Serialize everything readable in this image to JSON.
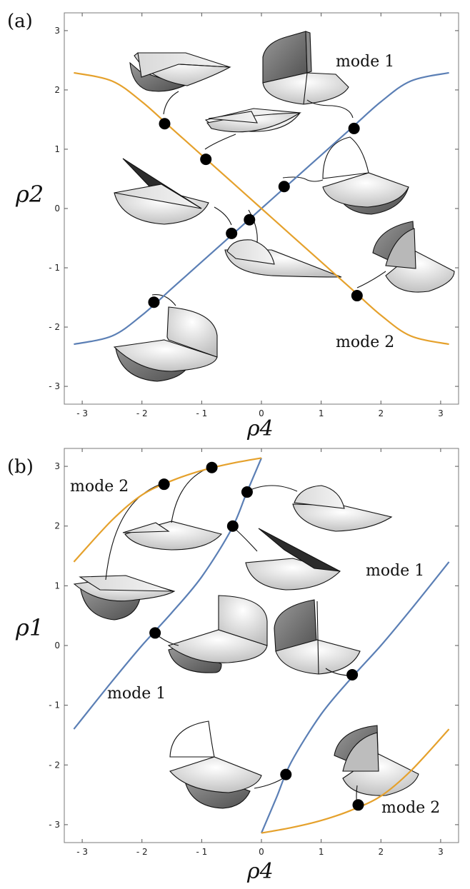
{
  "chart_data": [
    {
      "type": "line",
      "panel_label": "(a)",
      "xlabel": "ρ4",
      "ylabel": "ρ2",
      "xlim": [
        -3.3,
        3.3
      ],
      "ylim": [
        -3.3,
        3.3
      ],
      "xticks": [
        -3,
        -2,
        -1,
        0,
        1,
        2,
        3
      ],
      "yticks": [
        -3,
        -2,
        -1,
        0,
        1,
        2,
        3
      ],
      "series": [
        {
          "name": "mode 1",
          "color": "#5b7fb5",
          "x": [
            -3.14,
            -2.5,
            -2.0,
            -1.5,
            -1.0,
            -0.5,
            0.0,
            0.5,
            1.0,
            1.5,
            2.0,
            2.5,
            3.14
          ],
          "y": [
            -2.29,
            -2.15,
            -1.8,
            -1.35,
            -0.9,
            -0.45,
            0.0,
            0.45,
            0.9,
            1.35,
            1.8,
            2.15,
            2.29
          ]
        },
        {
          "name": "mode 2",
          "color": "#e5a12c",
          "x": [
            -3.14,
            -2.5,
            -2.0,
            -1.5,
            -1.0,
            -0.5,
            0.0,
            0.5,
            1.0,
            1.5,
            2.0,
            2.5,
            3.14
          ],
          "y": [
            2.29,
            2.15,
            1.8,
            1.35,
            0.9,
            0.45,
            0.0,
            -0.45,
            -0.9,
            -1.35,
            -1.8,
            -2.15,
            -2.29
          ]
        }
      ],
      "points": [
        {
          "x": -1.62,
          "y": 1.43
        },
        {
          "x": -0.93,
          "y": 0.83
        },
        {
          "x": 1.55,
          "y": 1.35
        },
        {
          "x": 0.38,
          "y": 0.37
        },
        {
          "x": -0.5,
          "y": -0.42
        },
        {
          "x": -0.2,
          "y": -0.19
        },
        {
          "x": 1.6,
          "y": -1.47
        },
        {
          "x": -1.8,
          "y": -1.58
        }
      ],
      "annotations": [
        {
          "text": "mode 1",
          "x": 2.1,
          "y": 2.3
        },
        {
          "text": "mode 2",
          "x": 2.1,
          "y": -2.38
        }
      ]
    },
    {
      "type": "line",
      "panel_label": "(b)",
      "xlabel": "ρ4",
      "ylabel": "ρ1",
      "xlim": [
        -3.3,
        3.3
      ],
      "ylim": [
        -3.3,
        3.3
      ],
      "xticks": [
        -3,
        -2,
        -1,
        0,
        1,
        2,
        3
      ],
      "yticks": [
        -3,
        -2,
        -1,
        0,
        1,
        2,
        3
      ],
      "series": [
        {
          "name": "mode 1",
          "color": "#5b7fb5",
          "x": [
            -3.14,
            -2.5,
            -2.0,
            -1.5,
            -1.0,
            -0.5,
            -0.25,
            0.0
          ],
          "y": [
            -1.4,
            -0.6,
            0.0,
            0.55,
            1.15,
            1.95,
            2.55,
            3.14
          ]
        },
        {
          "name": "mode 1",
          "color": "#5b7fb5",
          "x": [
            0.0,
            0.25,
            0.5,
            1.0,
            1.5,
            2.0,
            2.5,
            3.14
          ],
          "y": [
            -3.14,
            -2.55,
            -1.95,
            -1.15,
            -0.55,
            0.0,
            0.6,
            1.4
          ]
        },
        {
          "name": "mode 2",
          "color": "#e5a12c",
          "x": [
            -3.14,
            -2.5,
            -2.0,
            -1.5,
            -1.0,
            -0.5,
            0.0
          ],
          "y": [
            1.4,
            2.1,
            2.52,
            2.76,
            2.93,
            3.05,
            3.14
          ]
        },
        {
          "name": "mode 2",
          "color": "#e5a12c",
          "x": [
            0.0,
            0.5,
            1.0,
            1.5,
            2.0,
            2.5,
            3.14
          ],
          "y": [
            -3.14,
            -3.05,
            -2.93,
            -2.76,
            -2.52,
            -2.1,
            -1.4
          ]
        }
      ],
      "points": [
        {
          "x": -1.63,
          "y": 2.7
        },
        {
          "x": -0.83,
          "y": 2.98
        },
        {
          "x": -0.24,
          "y": 2.57
        },
        {
          "x": -0.48,
          "y": 2.0
        },
        {
          "x": -1.78,
          "y": 0.21
        },
        {
          "x": 1.52,
          "y": -0.49
        },
        {
          "x": 0.41,
          "y": -2.16
        },
        {
          "x": 1.62,
          "y": -2.67
        }
      ],
      "annotations": [
        {
          "text": "mode 2",
          "x": -3.15,
          "y": 2.5
        },
        {
          "text": "mode 1",
          "x": 1.8,
          "y": 1.08
        },
        {
          "text": "mode 1",
          "x": -2.6,
          "y": -0.42
        },
        {
          "text": "mode 2",
          "x": 2.0,
          "y": -2.6
        }
      ]
    }
  ]
}
